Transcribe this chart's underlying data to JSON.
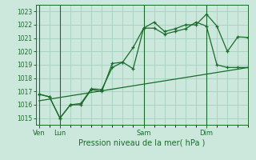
{
  "bg_color": "#cce8dc",
  "grid_color": "#a8d4c4",
  "line_color": "#1a6b2a",
  "ylim": [
    1014.5,
    1023.5
  ],
  "yticks": [
    1015,
    1016,
    1017,
    1018,
    1019,
    1020,
    1021,
    1022,
    1023
  ],
  "xlabel": "Pression niveau de la mer( hPa )",
  "day_labels": [
    "Ven",
    "Lun",
    "Sam",
    "Dim"
  ],
  "day_positions": [
    0,
    2,
    10,
    16
  ],
  "xlim": [
    -0.3,
    20
  ],
  "line1_x": [
    0,
    1,
    2,
    3,
    4,
    5,
    6,
    7,
    8,
    9,
    10,
    11,
    12,
    13,
    14,
    15,
    16,
    17,
    18,
    19,
    20
  ],
  "line1_y": [
    1016.8,
    1016.6,
    1015.0,
    1016.0,
    1016.0,
    1017.15,
    1017.0,
    1019.1,
    1019.2,
    1018.7,
    1021.75,
    1021.75,
    1021.3,
    1021.5,
    1021.7,
    1022.2,
    1021.9,
    1019.0,
    1018.8,
    1018.8,
    1018.8
  ],
  "line2_x": [
    0,
    1,
    2,
    3,
    4,
    5,
    6,
    7,
    8,
    9,
    10,
    11,
    12,
    13,
    14,
    15,
    16,
    17,
    18,
    19,
    20
  ],
  "line2_y": [
    1016.8,
    1016.6,
    1015.0,
    1016.0,
    1016.1,
    1017.2,
    1017.15,
    1018.8,
    1019.2,
    1020.3,
    1021.75,
    1022.2,
    1021.5,
    1021.7,
    1022.0,
    1022.0,
    1022.8,
    1021.9,
    1020.0,
    1021.1,
    1021.05
  ],
  "trend_x": [
    0,
    20
  ],
  "trend_y": [
    1016.3,
    1018.8
  ],
  "minor_xticks": [
    0,
    1,
    2,
    3,
    4,
    5,
    6,
    7,
    8,
    9,
    10,
    11,
    12,
    13,
    14,
    15,
    16,
    17,
    18,
    19,
    20
  ]
}
